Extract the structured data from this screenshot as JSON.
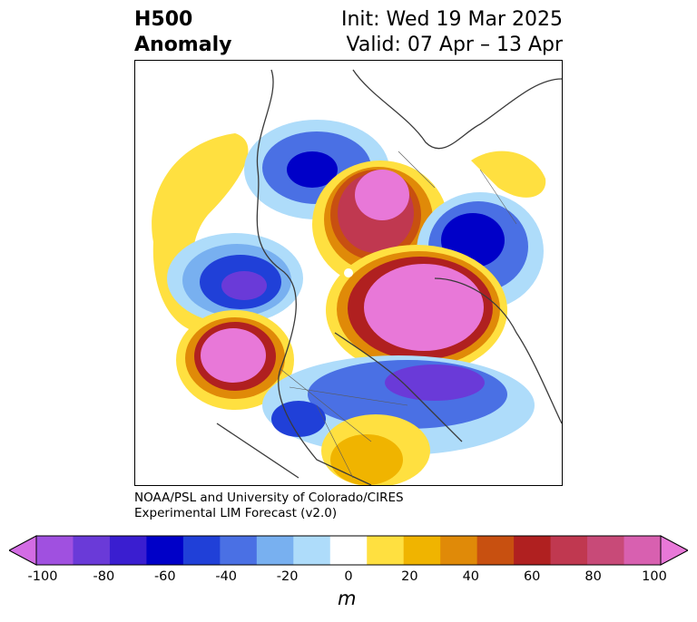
{
  "header": {
    "title_line1": "H500",
    "title_line2": "Anomaly",
    "init": "Init: Wed 19 Mar 2025",
    "valid": "Valid: 07 Apr – 13 Apr"
  },
  "credit": {
    "line1": "NOAA/PSL and University of Colorado/CIRES",
    "line2": "Experimental LIM Forecast (v2.0)"
  },
  "colorbar": {
    "ticks": [
      "-100",
      "-80",
      "-60",
      "-40",
      "-20",
      "0",
      "20",
      "40",
      "60",
      "80",
      "100"
    ],
    "unit": "m",
    "colors": [
      "#d36ce4",
      "#a050e0",
      "#6a3ad8",
      "#3a1ed0",
      "#0000c8",
      "#2040d8",
      "#4a70e4",
      "#78b0f0",
      "#aedcfa",
      "#ffffff",
      "#ffe040",
      "#f0b400",
      "#e08a08",
      "#c85010",
      "#b02020",
      "#c03850",
      "#c84a78",
      "#d860b0",
      "#e878d8"
    ]
  },
  "map": {
    "projection": "north-polar-stereographic",
    "colors": {
      "land_outline": "#3a3a3a",
      "neg_strong": "#0000c8",
      "pos_strong": "#e878d8"
    }
  }
}
